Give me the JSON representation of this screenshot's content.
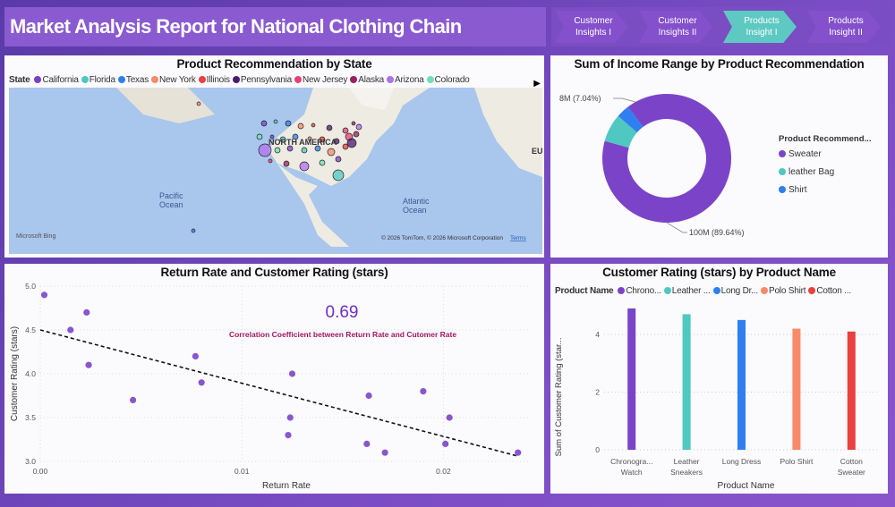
{
  "header": {
    "title": "Market Analysis Report for National Clothing Chain"
  },
  "nav": [
    {
      "line1": "Customer",
      "line2": "Insights I",
      "active": false
    },
    {
      "line1": "Customer",
      "line2": "Insights II",
      "active": false
    },
    {
      "line1": "Products",
      "line2": "Insight I",
      "active": true
    },
    {
      "line1": "Products",
      "line2": "Insight II",
      "active": false
    }
  ],
  "map": {
    "title": "Product Recommendation by State",
    "legend_title": "State",
    "legend": [
      {
        "name": "California",
        "color": "#7b3fc4"
      },
      {
        "name": "Florida",
        "color": "#4ec8c0"
      },
      {
        "name": "Texas",
        "color": "#2f7ff0"
      },
      {
        "name": "New York",
        "color": "#f88a6a"
      },
      {
        "name": "Illinois",
        "color": "#e94040"
      },
      {
        "name": "Pennsylvania",
        "color": "#4a1a70"
      },
      {
        "name": "New Jersey",
        "color": "#e8407a"
      },
      {
        "name": "Alaska",
        "color": "#9a2060"
      },
      {
        "name": "Arizona",
        "color": "#b070f0"
      },
      {
        "name": "Colorado",
        "color": "#6ee0b8"
      }
    ],
    "labels": {
      "continent": "NORTH AMERICA",
      "pacific": "Pacific\nOcean",
      "atlantic": "Atlantic\nOcean",
      "eu": "EU"
    },
    "brand": "Microsoft Bing",
    "copyright": "© 2026 TomTom, © 2026 Microsoft Corporation",
    "terms": "Terms"
  },
  "donut": {
    "title": "Sum of Income Range by Product Recommendation",
    "legend_title": "Product Recommend...",
    "slices": [
      {
        "name": "Sweater",
        "value": 89.64,
        "label": "100M (89.64%)",
        "color": "#7b44c8"
      },
      {
        "name": "leather Bag",
        "value": 7.04,
        "label": "8M (7.04%)",
        "color": "#4ec8c0"
      },
      {
        "name": "Shirt",
        "value": 3.32,
        "color": "#2f7ff0"
      }
    ]
  },
  "chart_data": [
    {
      "type": "scatter",
      "title": "Return Rate and Customer Rating (stars)",
      "xlabel": "Return Rate",
      "ylabel": "Customer Rating (stars)",
      "xlim": [
        0,
        0.0242
      ],
      "ylim": [
        3.0,
        5.0
      ],
      "xticks": [
        "0.00",
        "0.01",
        "0.02"
      ],
      "xtick_values": [
        0,
        0.01,
        0.02
      ],
      "yticks": [
        "3.0",
        "3.5",
        "4.0",
        "4.5",
        "5.0"
      ],
      "ytick_values": [
        3.0,
        3.5,
        4.0,
        4.5,
        5.0
      ],
      "grid": true,
      "points": [
        [
          0.0002,
          4.9
        ],
        [
          0.0015,
          4.5
        ],
        [
          0.0023,
          4.7
        ],
        [
          0.0024,
          4.1
        ],
        [
          0.0046,
          3.7
        ],
        [
          0.0077,
          4.2
        ],
        [
          0.008,
          3.9
        ],
        [
          0.0125,
          4.0
        ],
        [
          0.0124,
          3.5
        ],
        [
          0.0123,
          3.3
        ],
        [
          0.0163,
          3.75
        ],
        [
          0.0162,
          3.2
        ],
        [
          0.0171,
          3.1
        ],
        [
          0.019,
          3.8
        ],
        [
          0.0201,
          3.2
        ],
        [
          0.0203,
          3.5
        ],
        [
          0.0237,
          3.1
        ]
      ],
      "trendline": [
        [
          0,
          4.5
        ],
        [
          0.0237,
          3.06
        ]
      ],
      "annotation_value": "0.69",
      "annotation_text": "Correlation Coefficient between Return Rate and Cutomer Rate"
    },
    {
      "type": "bar",
      "title": "Customer Rating (stars) by Product Name",
      "xlabel": "Product Name",
      "ylabel": "Sum of Customer Rating (star...",
      "legend_title": "Product Name",
      "legend": [
        "Chrono...",
        "Leather ...",
        "Long Dr...",
        "Polo Shirt",
        "Cotton ..."
      ],
      "categories": [
        [
          "Chronogra...",
          "Watch"
        ],
        [
          "Leather",
          "Sneakers"
        ],
        [
          "Long Dress"
        ],
        [
          "Polo Shirt"
        ],
        [
          "Cotton",
          "Sweater"
        ]
      ],
      "values": [
        4.9,
        4.7,
        4.5,
        4.2,
        4.1
      ],
      "colors": [
        "#7b44c8",
        "#4ec8c0",
        "#2f7ff0",
        "#f88a6a",
        "#e94040"
      ],
      "ylim": [
        0,
        5
      ],
      "yticks": [
        "0",
        "2",
        "4"
      ],
      "ytick_values": [
        0,
        2,
        4
      ],
      "grid": true
    }
  ]
}
